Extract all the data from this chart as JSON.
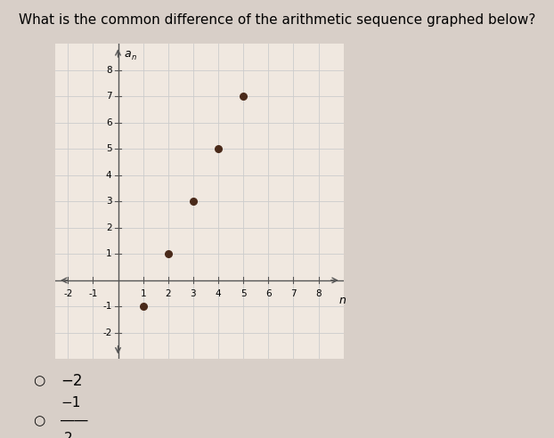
{
  "title": "What is the common difference of the arithmetic sequence graphed below?",
  "points": [
    [
      1,
      -1
    ],
    [
      2,
      1
    ],
    [
      3,
      3
    ],
    [
      4,
      5
    ],
    [
      5,
      7
    ]
  ],
  "xlim": [
    -2.5,
    9
  ],
  "ylim": [
    -3,
    9
  ],
  "xlabel": "n",
  "ylabel": "a",
  "point_color": "#4a2a1a",
  "point_size": 30,
  "grid_color": "#cccccc",
  "axis_color": "#555555",
  "plot_bg_color": "#f0e8e0",
  "fig_bg_color": "#d8cfc8",
  "title_fontsize": 11,
  "tick_fontsize": 7.5,
  "choice_fontsize": 13
}
